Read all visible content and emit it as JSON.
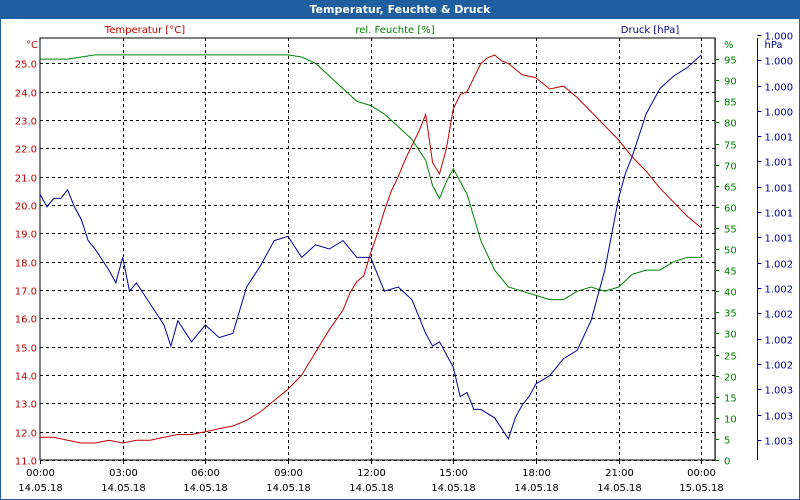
{
  "window": {
    "title": "Temperatur, Feuchte & Druck"
  },
  "chart_data": {
    "type": "line",
    "title": "Temperatur, Feuchte & Druck",
    "colors": {
      "temperature": "#c00000",
      "humidity": "#008000",
      "pressure": "#000090",
      "grid": "#000000",
      "title_bar": "#1f5fa0"
    },
    "x_ticks": [
      {
        "time": "00:00",
        "date": "14.05.18"
      },
      {
        "time": "03:00",
        "date": "14.05.18"
      },
      {
        "time": "06:00",
        "date": "14.05.18"
      },
      {
        "time": "09:00",
        "date": "14.05.18"
      },
      {
        "time": "12:00",
        "date": "14.05.18"
      },
      {
        "time": "15:00",
        "date": "14.05.18"
      },
      {
        "time": "18:00",
        "date": "14.05.18"
      },
      {
        "time": "21:00",
        "date": "14.05.18"
      },
      {
        "time": "00:00",
        "date": "15.05.18"
      }
    ],
    "x_range_hours": [
      0,
      24.5
    ],
    "axes": {
      "temperature": {
        "name": "Temperatur [°C]",
        "unit": "°C",
        "range": [
          11.0,
          25.9
        ],
        "ticks": [
          "11.0",
          "12.0",
          "13.0",
          "14.0",
          "15.0",
          "16.0",
          "17.0",
          "18.0",
          "19.0",
          "20.0",
          "21.0",
          "22.0",
          "23.0",
          "24.0",
          "25.0"
        ]
      },
      "humidity": {
        "name": "rel. Feuchte [%]",
        "unit": "%",
        "range": [
          0,
          100
        ],
        "ticks": [
          "0",
          "5",
          "10",
          "15",
          "20",
          "25",
          "30",
          "35",
          "40",
          "45",
          "50",
          "55",
          "60",
          "65",
          "70",
          "75",
          "80",
          "85",
          "90",
          "95"
        ],
        "unit_label": "%"
      },
      "pressure": {
        "name": "Druck [hPa]",
        "unit": "hPa",
        "ticks": [
          "1.000",
          "1.000",
          "1.000",
          "1.000",
          "1.001",
          "1.001",
          "1.001",
          "1.001",
          "1.001",
          "1.002",
          "1.002",
          "1.002",
          "1.002",
          "1.002",
          "1.003",
          "1.003",
          "1.003"
        ],
        "plot_range": [
          0,
          100
        ],
        "note": "pressure values mapped onto the right scale 0-100 (visual position)"
      }
    },
    "series": [
      {
        "name": "Temperatur",
        "axis": "temperature",
        "x": [
          0,
          0.5,
          1,
          1.5,
          2,
          2.5,
          3,
          3.5,
          4,
          4.5,
          5,
          5.5,
          6,
          6.5,
          7,
          7.5,
          8,
          8.5,
          9,
          9.5,
          10,
          10.5,
          11,
          11.25,
          11.5,
          11.75,
          12,
          12.25,
          12.5,
          12.75,
          13,
          13.25,
          13.5,
          13.75,
          14,
          14.25,
          14.5,
          14.75,
          15,
          15.25,
          15.5,
          15.75,
          16,
          16.25,
          16.5,
          16.75,
          17,
          17.5,
          18,
          18.5,
          19,
          19.5,
          20,
          20.5,
          21,
          21.5,
          22,
          22.5,
          23,
          23.5,
          24
        ],
        "values": [
          11.8,
          11.8,
          11.7,
          11.6,
          11.6,
          11.7,
          11.6,
          11.7,
          11.7,
          11.8,
          11.9,
          11.9,
          12.0,
          12.1,
          12.2,
          12.4,
          12.7,
          13.1,
          13.5,
          14.0,
          14.8,
          15.6,
          16.3,
          16.9,
          17.3,
          17.5,
          18.3,
          19.0,
          19.8,
          20.5,
          21.0,
          21.6,
          22.1,
          22.6,
          23.2,
          21.5,
          21.1,
          22.0,
          23.4,
          23.9,
          24.0,
          24.5,
          25.0,
          25.2,
          25.3,
          25.1,
          25.0,
          24.6,
          24.5,
          24.1,
          24.2,
          23.8,
          23.3,
          22.8,
          22.3,
          21.7,
          21.2,
          20.6,
          20.1,
          19.6,
          19.2
        ]
      },
      {
        "name": "rel. Feuchte",
        "axis": "humidity",
        "x": [
          0,
          0.5,
          1,
          1.5,
          2,
          2.5,
          3,
          3.5,
          4,
          4.5,
          5,
          5.5,
          6,
          6.5,
          7,
          7.5,
          8,
          8.5,
          9,
          9.5,
          10,
          10.5,
          11,
          11.5,
          12,
          12.5,
          13,
          13.5,
          14,
          14.25,
          14.5,
          14.75,
          15,
          15.5,
          16,
          16.5,
          17,
          17.5,
          18,
          18.5,
          19,
          19.5,
          20,
          20.5,
          21,
          21.5,
          22,
          22.5,
          23,
          23.5,
          24
        ],
        "values": [
          95,
          95,
          95,
          95.5,
          96,
          96,
          96,
          96,
          96,
          96,
          96,
          96,
          96,
          96,
          96,
          96,
          96,
          96,
          96,
          95.5,
          94,
          91,
          88,
          85,
          84,
          82,
          79,
          76,
          71,
          65,
          62,
          66,
          69,
          63,
          52,
          45,
          41,
          40,
          39,
          38,
          38,
          40,
          41,
          40,
          41,
          44,
          45,
          45,
          47,
          48,
          48
        ]
      },
      {
        "name": "Druck",
        "axis": "pressure",
        "x": [
          0,
          0.25,
          0.5,
          0.75,
          1,
          1.25,
          1.5,
          1.75,
          2,
          2.5,
          2.75,
          3,
          3.25,
          3.5,
          4,
          4.5,
          4.75,
          5,
          5.5,
          6,
          6.5,
          7,
          7.5,
          8,
          8.5,
          9,
          9.5,
          10,
          10.5,
          11,
          11.5,
          12,
          12.5,
          13,
          13.5,
          14,
          14.25,
          14.5,
          14.75,
          15,
          15.25,
          15.5,
          15.75,
          16,
          16.5,
          17,
          17.25,
          17.5,
          17.75,
          18,
          18.5,
          19,
          19.5,
          20,
          20.5,
          21,
          21.25,
          21.5,
          21.75,
          22,
          22.5,
          23,
          23.5,
          24
        ],
        "values": [
          63,
          60,
          62,
          62,
          64,
          60,
          57,
          52,
          50,
          45,
          42,
          48,
          40,
          42,
          37,
          32,
          27,
          33,
          28,
          32,
          29,
          30,
          41,
          46,
          52,
          53,
          48,
          51,
          50,
          52,
          48,
          48,
          40,
          41,
          38,
          30,
          27,
          28,
          25,
          22,
          15,
          16,
          12,
          12,
          10,
          5,
          10,
          13,
          15,
          18,
          20,
          24,
          26,
          33,
          45,
          62,
          68,
          72,
          77,
          82,
          88,
          91,
          93,
          96
        ]
      }
    ]
  }
}
